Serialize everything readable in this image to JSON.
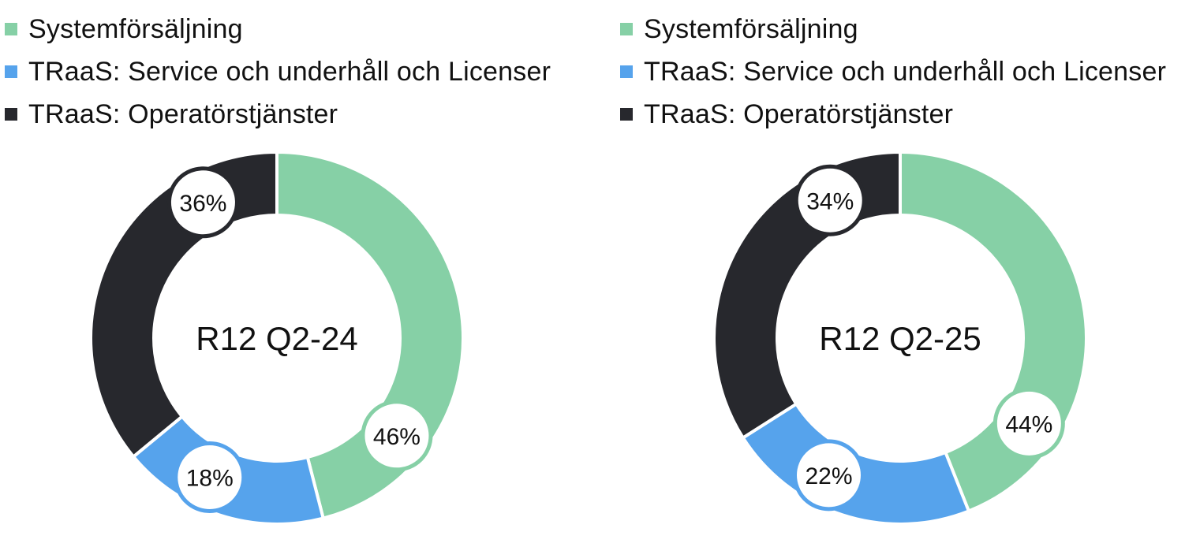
{
  "colors": {
    "systemforsaljning": "#86d0a6",
    "service": "#56a3ec",
    "operator": "#27282d",
    "background": "#ffffff"
  },
  "legend_labels": [
    "Systemförsäljning",
    "TRaaS: Service och underhåll och Licenser",
    "TRaaS: Operatörstjänster"
  ],
  "chart_data": [
    {
      "type": "pie",
      "center_label": "R12 Q2-24",
      "categories": [
        "Systemförsäljning",
        "TRaaS: Service och underhåll och Licenser",
        "TRaaS: Operatörstjänster"
      ],
      "values": [
        46,
        18,
        36
      ],
      "labels": [
        "46%",
        "18%",
        "36%"
      ],
      "legend": "top-left"
    },
    {
      "type": "pie",
      "center_label": "R12 Q2-25",
      "categories": [
        "Systemförsäljning",
        "TRaaS: Service och underhåll och Licenser",
        "TRaaS: Operatörstjänster"
      ],
      "values": [
        44,
        22,
        34
      ],
      "labels": [
        "44%",
        "22%",
        "34%"
      ],
      "legend": "top-left"
    }
  ]
}
